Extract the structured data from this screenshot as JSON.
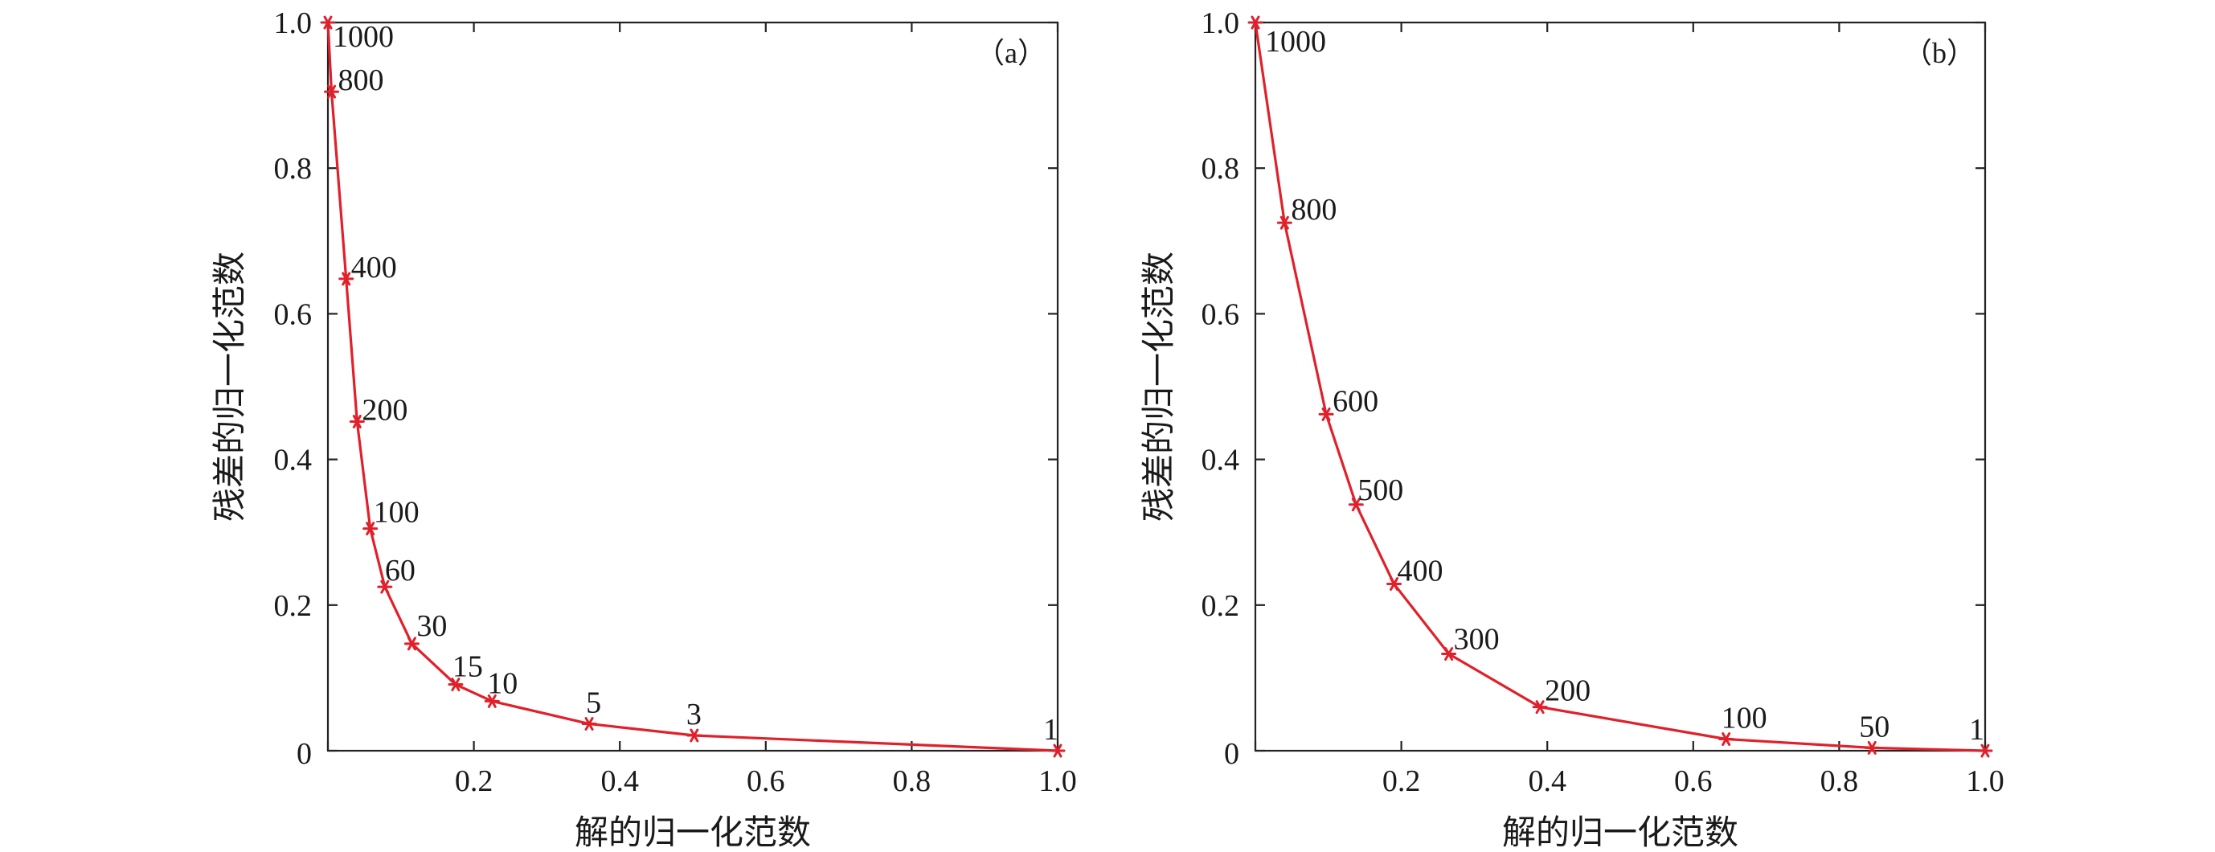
{
  "chart_data": [
    {
      "type": "line",
      "panel_label": "（a）",
      "xlabel": "解的归一化范数",
      "ylabel": "残差的归一化范数",
      "xlim": [
        0,
        1.0
      ],
      "ylim": [
        0,
        1.0
      ],
      "x_ticks": [
        0,
        0.2,
        0.4,
        0.6,
        0.8,
        1.0
      ],
      "y_ticks": [
        0,
        0.2,
        0.4,
        0.6,
        0.8,
        1.0
      ],
      "x_tick_labels": [
        "",
        "0.2",
        "0.4",
        "0.6",
        "0.8",
        "1.0"
      ],
      "y_tick_labels": [
        "0",
        "0.2",
        "0.4",
        "0.6",
        "0.8",
        "1.0"
      ],
      "grid": false,
      "series": [
        {
          "color": "#e0202a",
          "marker": "asterisk",
          "points": [
            {
              "x": 0.0,
              "y": 1.0,
              "label": "1000"
            },
            {
              "x": 0.005,
              "y": 0.905,
              "label": "800"
            },
            {
              "x": 0.025,
              "y": 0.648,
              "label": "400"
            },
            {
              "x": 0.04,
              "y": 0.452,
              "label": "200"
            },
            {
              "x": 0.058,
              "y": 0.305,
              "label": "100"
            },
            {
              "x": 0.078,
              "y": 0.225,
              "label": "60"
            },
            {
              "x": 0.115,
              "y": 0.147,
              "label": "30"
            },
            {
              "x": 0.175,
              "y": 0.091,
              "label": "15"
            },
            {
              "x": 0.225,
              "y": 0.068,
              "label": "10"
            },
            {
              "x": 0.358,
              "y": 0.037,
              "label": "5"
            },
            {
              "x": 0.502,
              "y": 0.021,
              "label": "3"
            },
            {
              "x": 1.0,
              "y": 0.0,
              "label": "1"
            }
          ]
        }
      ]
    },
    {
      "type": "line",
      "panel_label": "（b）",
      "xlabel": "解的归一化范数",
      "ylabel": "残差的归一化范数",
      "xlim": [
        0,
        1.0
      ],
      "ylim": [
        0,
        1.0
      ],
      "x_ticks": [
        0,
        0.2,
        0.4,
        0.6,
        0.8,
        1.0
      ],
      "y_ticks": [
        0,
        0.2,
        0.4,
        0.6,
        0.8,
        1.0
      ],
      "x_tick_labels": [
        "",
        "0.2",
        "0.4",
        "0.6",
        "0.8",
        "1.0"
      ],
      "y_tick_labels": [
        "0",
        "0.2",
        "0.4",
        "0.6",
        "0.8",
        "1.0"
      ],
      "grid": false,
      "series": [
        {
          "color": "#e0202a",
          "marker": "asterisk",
          "points": [
            {
              "x": 0.0,
              "y": 1.0,
              "label": "1000"
            },
            {
              "x": 0.04,
              "y": 0.725,
              "label": "800"
            },
            {
              "x": 0.097,
              "y": 0.462,
              "label": "600"
            },
            {
              "x": 0.138,
              "y": 0.338,
              "label": "500"
            },
            {
              "x": 0.19,
              "y": 0.229,
              "label": "400"
            },
            {
              "x": 0.265,
              "y": 0.133,
              "label": "300"
            },
            {
              "x": 0.39,
              "y": 0.06,
              "label": "200"
            },
            {
              "x": 0.645,
              "y": 0.016,
              "label": "100"
            },
            {
              "x": 0.845,
              "y": 0.004,
              "label": "50"
            },
            {
              "x": 1.0,
              "y": 0.0,
              "label": "1"
            }
          ]
        }
      ]
    }
  ]
}
